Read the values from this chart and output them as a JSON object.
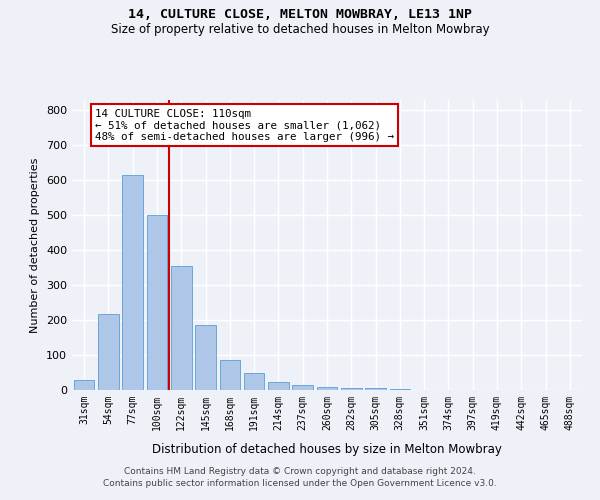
{
  "title1": "14, CULTURE CLOSE, MELTON MOWBRAY, LE13 1NP",
  "title2": "Size of property relative to detached houses in Melton Mowbray",
  "xlabel": "Distribution of detached houses by size in Melton Mowbray",
  "ylabel": "Number of detached properties",
  "categories": [
    "31sqm",
    "54sqm",
    "77sqm",
    "100sqm",
    "122sqm",
    "145sqm",
    "168sqm",
    "191sqm",
    "214sqm",
    "237sqm",
    "260sqm",
    "282sqm",
    "305sqm",
    "328sqm",
    "351sqm",
    "374sqm",
    "397sqm",
    "419sqm",
    "442sqm",
    "465sqm",
    "488sqm"
  ],
  "values": [
    30,
    218,
    615,
    500,
    355,
    185,
    85,
    50,
    22,
    15,
    8,
    5,
    7,
    2,
    0,
    0,
    0,
    0,
    0,
    0,
    0
  ],
  "bar_color": "#aec6e8",
  "bar_edge_color": "#5a9fd4",
  "vline_x": 3.5,
  "vline_color": "#cc0000",
  "annotation_text": "14 CULTURE CLOSE: 110sqm\n← 51% of detached houses are smaller (1,062)\n48% of semi-detached houses are larger (996) →",
  "annotation_box_color": "#ffffff",
  "annotation_box_edge": "#cc0000",
  "ylim": [
    0,
    830
  ],
  "yticks": [
    0,
    100,
    200,
    300,
    400,
    500,
    600,
    700,
    800
  ],
  "footer1": "Contains HM Land Registry data © Crown copyright and database right 2024.",
  "footer2": "Contains public sector information licensed under the Open Government Licence v3.0.",
  "bg_color": "#eef2f8",
  "grid_color": "#ffffff"
}
